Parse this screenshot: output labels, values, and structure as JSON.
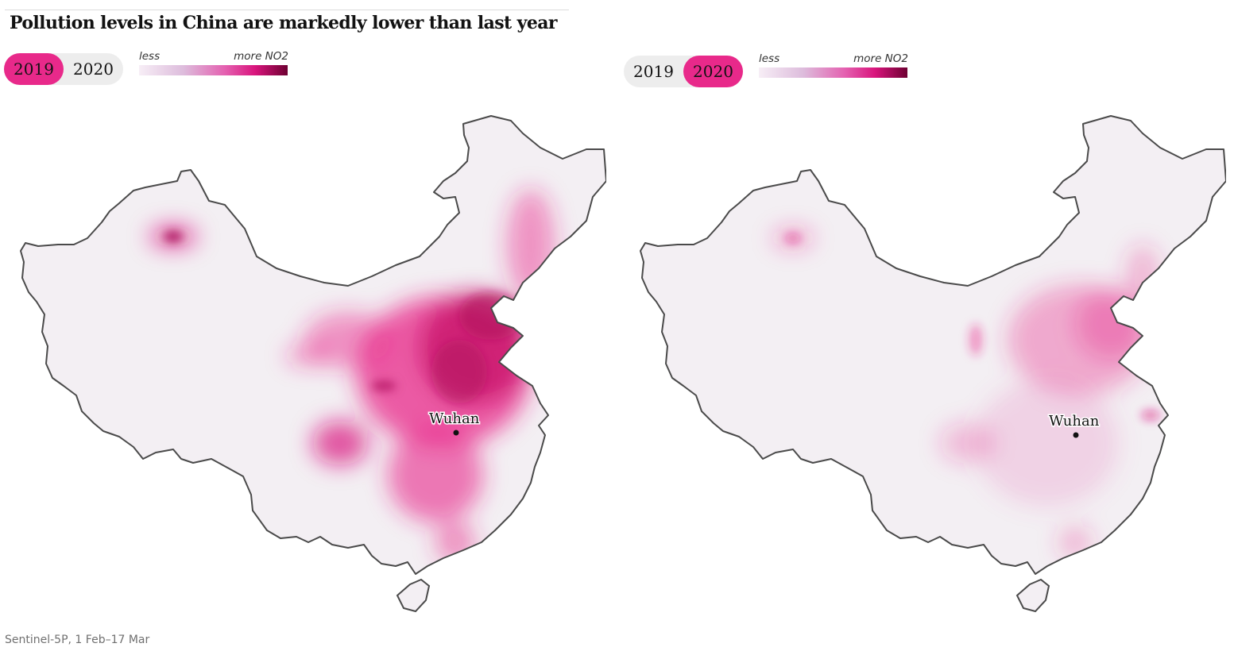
{
  "title": "Pollution levels in China are markedly lower than last year",
  "panels": [
    {
      "id": "2019",
      "toggle": {
        "options": [
          "2019",
          "2020"
        ],
        "selected": "2019"
      },
      "legend": {
        "less_label": "less",
        "more_label": "more NO2"
      },
      "city": {
        "name": "Wuhan"
      },
      "intensity": "high"
    },
    {
      "id": "2020",
      "toggle": {
        "options": [
          "2019",
          "2020"
        ],
        "selected": "2020"
      },
      "legend": {
        "less_label": "less",
        "more_label": "more NO2"
      },
      "city": {
        "name": "Wuhan"
      },
      "intensity": "low"
    }
  ],
  "source": "Sentinel-5P, 1 Feb–17 Mar",
  "colors": {
    "accent": "#e8298a",
    "land": "#f3eff3",
    "border": "#4a4a4a",
    "scale": [
      "#f7eef6",
      "#ddbcdc",
      "#e460b0",
      "#d9157d",
      "#6e0032"
    ]
  }
}
